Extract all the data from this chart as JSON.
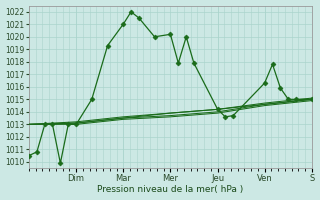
{
  "xlabel": "Pression niveau de la mer( hPa )",
  "background_color": "#cce8e4",
  "grid_color": "#aad4cc",
  "line_color": "#1a6b1a",
  "ylim": [
    1009.5,
    1022.5
  ],
  "ytick_values": [
    1010,
    1011,
    1012,
    1013,
    1014,
    1015,
    1016,
    1017,
    1018,
    1019,
    1020,
    1021,
    1022
  ],
  "day_labels": [
    "Dim",
    "Mar",
    "Mer",
    "Jeu",
    "Ven",
    "S"
  ],
  "day_x_fracs": [
    0.1667,
    0.3333,
    0.5,
    0.6667,
    0.8333,
    1.0
  ],
  "series": [
    {
      "x": [
        0,
        0.028,
        0.056,
        0.083,
        0.111,
        0.139,
        0.167,
        0.222,
        0.278,
        0.333,
        0.361,
        0.389,
        0.444,
        0.5,
        0.528,
        0.556,
        0.583,
        0.667,
        0.694,
        0.722,
        0.833,
        0.861,
        0.889,
        0.917,
        0.944,
        1.0
      ],
      "y": [
        1010.5,
        1010.8,
        1013.0,
        1013.0,
        1009.9,
        1013.0,
        1013.0,
        1015.0,
        1019.3,
        1021.0,
        1022.0,
        1021.5,
        1020.0,
        1020.2,
        1017.9,
        1020.0,
        1017.9,
        1014.2,
        1013.6,
        1013.7,
        1016.3,
        1017.8,
        1015.9,
        1015.0,
        1015.0,
        1015.0
      ],
      "has_markers": true
    },
    {
      "x": [
        0,
        0.167,
        0.333,
        0.5,
        0.667,
        0.833,
        1.0
      ],
      "y": [
        1013.0,
        1013.1,
        1013.5,
        1013.9,
        1014.2,
        1014.6,
        1015.0
      ],
      "has_markers": false
    },
    {
      "x": [
        0,
        0.167,
        0.333,
        0.5,
        0.667,
        0.833,
        1.0
      ],
      "y": [
        1013.0,
        1013.0,
        1013.4,
        1013.6,
        1013.9,
        1014.5,
        1014.9
      ],
      "has_markers": false
    },
    {
      "x": [
        0,
        0.167,
        0.333,
        0.5,
        0.667,
        0.833,
        1.0
      ],
      "y": [
        1013.0,
        1013.2,
        1013.6,
        1013.9,
        1014.2,
        1014.7,
        1015.1
      ],
      "has_markers": false
    },
    {
      "x": [
        0,
        0.167,
        0.333,
        0.5,
        0.667,
        0.833,
        1.0
      ],
      "y": [
        1013.0,
        1013.1,
        1013.5,
        1013.7,
        1014.0,
        1014.6,
        1015.0
      ],
      "has_markers": false
    }
  ],
  "ytick_fontsize": 5.5,
  "xtick_fontsize": 6.0,
  "xlabel_fontsize": 6.5,
  "spine_color": "#999999"
}
